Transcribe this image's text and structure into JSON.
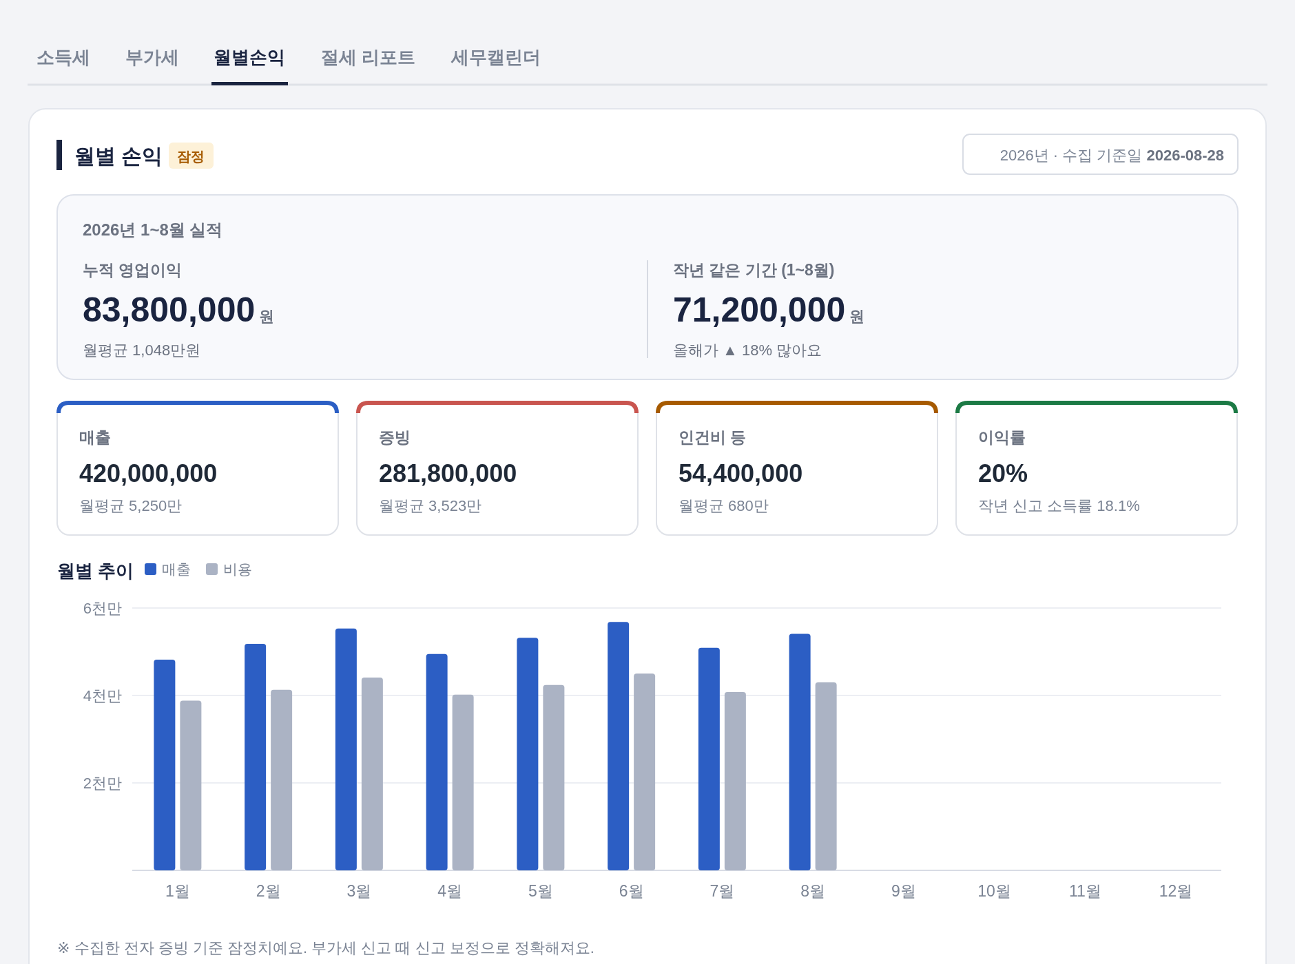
{
  "chart_data": [
    {
      "type": "other",
      "title": "월별 손익",
      "colors": [
        "#2b5ec4",
        "#c9554f",
        "#a65a00",
        "#1c7a45"
      ],
      "annotations": [
        "소득세",
        "부가세",
        "월별손익",
        "절세 리포트",
        "세무캘린더",
        "잠정",
        "2026년 · 수집 기준일",
        "2026-08-28",
        "2026년 1~8월 실적",
        "누적 영업이익",
        "83,800,000",
        "원",
        "월평균 1,048만원",
        "작년 같은 기간 (1~8월)",
        "71,200,000",
        "원",
        "올해가 ▲ 18% 많아요",
        "매출",
        "420,000,000",
        "월평균 5,250만",
        "증빙",
        "281,800,000",
        "월평균 3,523만",
        "인건비 등",
        "54,400,000",
        "월평균 680만",
        "이익률",
        "20%",
        "작년 신고 소득률 18.1%"
      ]
    },
    {
      "type": "bar",
      "title": "월별 추이",
      "categories": [
        "1월",
        "2월",
        "3월",
        "4월",
        "5월",
        "6월",
        "7월",
        "8월",
        "9월",
        "10월",
        "11월",
        "12월"
      ],
      "series": [
        {
          "name": "매출",
          "color": "#2c5ec4",
          "values": [
            4.82,
            5.18,
            5.53,
            4.95,
            5.32,
            5.68,
            5.09,
            5.41,
            null,
            null,
            null,
            null
          ]
        },
        {
          "name": "비용",
          "color": "#abb3c4",
          "values": [
            3.88,
            4.13,
            4.41,
            4.02,
            4.24,
            4.5,
            4.08,
            4.3,
            null,
            null,
            null,
            null
          ]
        }
      ],
      "ylim": [
        0,
        6
      ],
      "yticks": [
        {
          "value": 0,
          "label": null
        },
        {
          "value": 2,
          "label": "2천만"
        },
        {
          "value": 4,
          "label": "4천만"
        },
        {
          "value": 6,
          "label": "6천만"
        }
      ],
      "grid": "y",
      "legend": "top left",
      "annotations": [
        "※ 수집한 전자 증빙 기준 잠정치예요. 부가세 신고 때 신고 보정으로 정확해져요."
      ]
    }
  ]
}
